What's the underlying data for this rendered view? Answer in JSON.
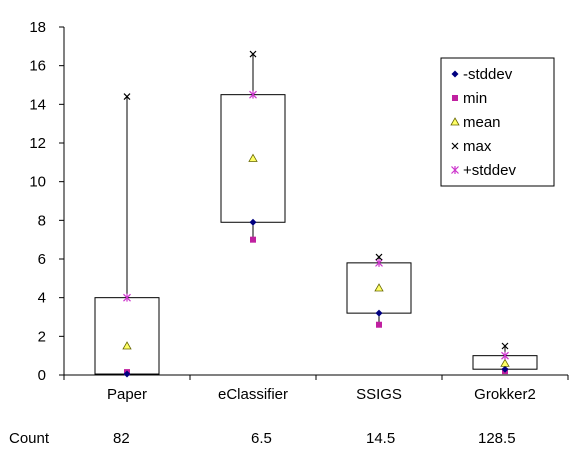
{
  "chart_data": {
    "type": "box",
    "categories": [
      "Paper",
      "eClassifier",
      "SSIGS",
      "Grokker2"
    ],
    "series": [
      {
        "name": "-stddev",
        "values": [
          0.05,
          7.9,
          3.2,
          0.3
        ]
      },
      {
        "name": "min",
        "values": [
          0.15,
          7.0,
          2.6,
          0.2
        ]
      },
      {
        "name": "mean",
        "values": [
          1.5,
          11.2,
          4.5,
          0.6
        ]
      },
      {
        "name": "max",
        "values": [
          14.4,
          16.6,
          6.1,
          1.5
        ]
      },
      {
        "name": "+stddev",
        "values": [
          4.0,
          14.5,
          5.8,
          1.0
        ]
      }
    ],
    "ylim": [
      0,
      18
    ],
    "yticks": [
      0,
      2,
      4,
      6,
      8,
      10,
      12,
      14,
      16,
      18
    ],
    "legend_position": "top-right",
    "colors": {
      "-stddev": "#000080",
      "min": "#c020a0",
      "mean": "#ffff66",
      "max": "#000000",
      "+stddev": "#cc33cc"
    }
  },
  "count_row": {
    "label": "Count",
    "values": [
      "82",
      "6.5",
      "14.5",
      "128.5"
    ]
  }
}
